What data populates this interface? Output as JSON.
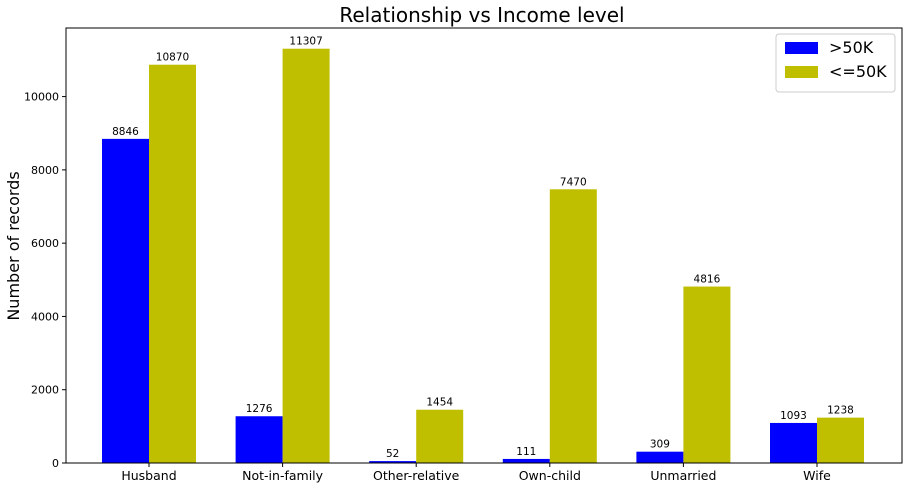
{
  "chart_data": {
    "type": "bar",
    "title": "Relationship vs Income level",
    "xlabel": "",
    "ylabel": "Number of records",
    "categories": [
      "Husband",
      "Not-in-family",
      "Other-relative",
      "Own-child",
      "Unmarried",
      "Wife"
    ],
    "series": [
      {
        "name": ">50K",
        "color": "#0000ff",
        "values": [
          8846,
          1276,
          52,
          111,
          309,
          1093
        ]
      },
      {
        "name": "<=50K",
        "color": "#bfbf00",
        "values": [
          10870,
          11307,
          1454,
          7470,
          4816,
          1238
        ]
      }
    ],
    "ylim": [
      0,
      11872
    ],
    "yticks": [
      0,
      2000,
      4000,
      6000,
      8000,
      10000
    ],
    "grid": false,
    "legend_position": "top-right"
  }
}
